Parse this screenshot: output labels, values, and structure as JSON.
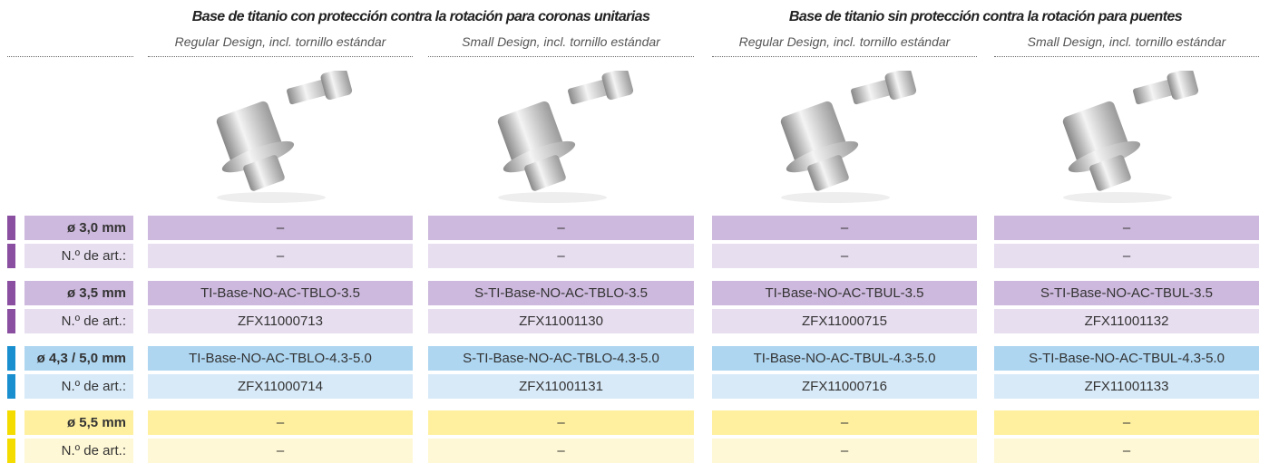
{
  "header": {
    "groups": [
      {
        "title": "Base de titanio con protección contra la rotación para coronas unitarias",
        "columns": [
          "Regular Design, incl. tornillo estándar",
          "Small Design, incl. tornillo estándar"
        ]
      },
      {
        "title": "Base de titanio sin protección contra la rotación para puentes",
        "columns": [
          "Regular Design, incl. tornillo estándar",
          "Small Design, incl. tornillo estándar"
        ]
      }
    ]
  },
  "table": {
    "rows": [
      {
        "label": "ø 3,0 mm",
        "cells": [
          "–",
          "–",
          "–",
          "–"
        ]
      },
      {
        "label": "N.º de art.:",
        "cells": [
          "–",
          "–",
          "–",
          "–"
        ]
      },
      {
        "label": "ø 3,5 mm",
        "cells": [
          "TI-Base-NO-AC-TBLO-3.5",
          "S-TI-Base-NO-AC-TBLO-3.5",
          "TI-Base-NO-AC-TBUL-3.5",
          "S-TI-Base-NO-AC-TBUL-3.5"
        ]
      },
      {
        "label": "N.º de art.:",
        "cells": [
          "ZFX11000713",
          "ZFX11001130",
          "ZFX11000715",
          "ZFX11001132"
        ]
      },
      {
        "label": "ø 4,3 / 5,0 mm",
        "cells": [
          "TI-Base-NO-AC-TBLO-4.3-5.0",
          "S-TI-Base-NO-AC-TBLO-4.3-5.0",
          "TI-Base-NO-AC-TBUL-4.3-5.0",
          "S-TI-Base-NO-AC-TBUL-4.3-5.0"
        ]
      },
      {
        "label": "N.º de art.:",
        "cells": [
          "ZFX11000714",
          "ZFX11001131",
          "ZFX11000716",
          "ZFX11001133"
        ]
      },
      {
        "label": "ø 5,5 mm",
        "cells": [
          "–",
          "–",
          "–",
          "–"
        ]
      },
      {
        "label": "N.º de art.:",
        "cells": [
          "–",
          "–",
          "–",
          "–"
        ]
      }
    ]
  }
}
